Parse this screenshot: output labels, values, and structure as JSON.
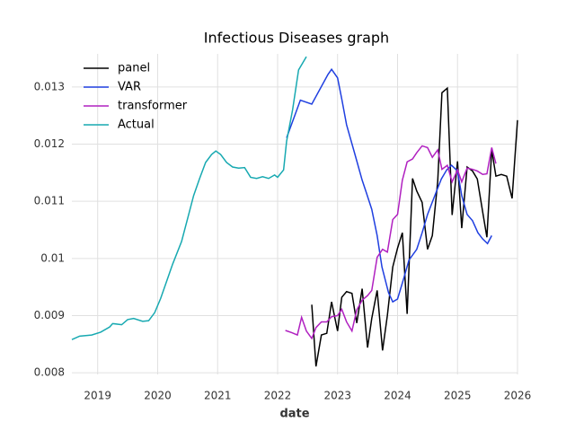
{
  "chart_data": {
    "type": "line",
    "title": "Infectious Diseases graph",
    "xlabel": "date",
    "xlim": [
      2018.57,
      2026
    ],
    "xticks": [
      2019,
      2020,
      2021,
      2022,
      2023,
      2024,
      2025,
      2026
    ],
    "ylim": [
      0.00797,
      0.01358
    ],
    "yticks": [
      0.008,
      0.009,
      0.01,
      0.011,
      0.012,
      0.013
    ],
    "grid": true,
    "legend": "upper left",
    "series": [
      {
        "name": "panel",
        "color": "#000000",
        "x": [
          2022.57,
          2022.64,
          2022.73,
          2022.82,
          2022.9,
          2023.0,
          2023.07,
          2023.15,
          2023.24,
          2023.32,
          2023.41,
          2023.5,
          2023.57,
          2023.66,
          2023.75,
          2023.83,
          2023.92,
          2024.0,
          2024.08,
          2024.16,
          2024.25,
          2024.32,
          2024.41,
          2024.5,
          2024.58,
          2024.67,
          2024.74,
          2024.83,
          2024.91,
          2025.0,
          2025.07,
          2025.16,
          2025.25,
          2025.33,
          2025.42,
          2025.49,
          2025.57,
          2025.64,
          2025.73,
          2025.82,
          2025.91,
          2026.0
        ],
        "values": [
          0.00919,
          0.00811,
          0.00866,
          0.00869,
          0.00924,
          0.00873,
          0.00932,
          0.00942,
          0.00939,
          0.00887,
          0.00947,
          0.00844,
          0.00895,
          0.00944,
          0.00839,
          0.009,
          0.00985,
          0.01018,
          0.01045,
          0.00903,
          0.0114,
          0.01118,
          0.01098,
          0.01016,
          0.0104,
          0.01135,
          0.0129,
          0.01298,
          0.01076,
          0.0117,
          0.01053,
          0.0116,
          0.01153,
          0.01139,
          0.01081,
          0.01037,
          0.0119,
          0.01144,
          0.01147,
          0.01144,
          0.01105,
          0.01242
        ]
      },
      {
        "name": "VAR",
        "color": "#1f3fe0",
        "x": [
          2022.15,
          2022.38,
          2022.57,
          2022.84,
          2022.9,
          2023.0,
          2023.07,
          2023.15,
          2023.29,
          2023.41,
          2023.48,
          2023.57,
          2023.66,
          2023.74,
          2023.85,
          2023.92,
          2024.0,
          2024.1,
          2024.19,
          2024.32,
          2024.41,
          2024.5,
          2024.64,
          2024.73,
          2024.82,
          2024.9,
          2025.0,
          2025.07,
          2025.16,
          2025.25,
          2025.34,
          2025.42,
          2025.5,
          2025.57
        ],
        "values": [
          0.01211,
          0.01277,
          0.0127,
          0.01322,
          0.01331,
          0.01316,
          0.01279,
          0.01234,
          0.01182,
          0.01137,
          0.01115,
          0.01086,
          0.0104,
          0.00985,
          0.0094,
          0.00924,
          0.00929,
          0.00964,
          0.00997,
          0.01016,
          0.01045,
          0.01077,
          0.01115,
          0.01139,
          0.01155,
          0.01163,
          0.01153,
          0.0111,
          0.01077,
          0.01066,
          0.01045,
          0.01034,
          0.01026,
          0.0104
        ]
      },
      {
        "name": "transformer",
        "color": "#b020c0",
        "x": [
          2022.13,
          2022.24,
          2022.33,
          2022.4,
          2022.48,
          2022.57,
          2022.64,
          2022.73,
          2022.82,
          2022.9,
          2023.0,
          2023.07,
          2023.15,
          2023.24,
          2023.32,
          2023.41,
          2023.5,
          2023.57,
          2023.66,
          2023.75,
          2023.83,
          2023.92,
          2024.0,
          2024.08,
          2024.16,
          2024.25,
          2024.32,
          2024.41,
          2024.5,
          2024.58,
          2024.67,
          2024.74,
          2024.83,
          2024.91,
          2025.0,
          2025.07,
          2025.16,
          2025.25,
          2025.33,
          2025.42,
          2025.49,
          2025.57,
          2025.64
        ],
        "values": [
          0.00874,
          0.0087,
          0.00866,
          0.00897,
          0.00873,
          0.0086,
          0.00879,
          0.00889,
          0.00889,
          0.00898,
          0.009,
          0.00911,
          0.00889,
          0.00873,
          0.0091,
          0.00927,
          0.00935,
          0.00944,
          0.01002,
          0.01016,
          0.01011,
          0.01068,
          0.01077,
          0.01137,
          0.01169,
          0.01174,
          0.01185,
          0.01197,
          0.01194,
          0.01177,
          0.0119,
          0.01156,
          0.01163,
          0.01134,
          0.01155,
          0.01134,
          0.01158,
          0.01156,
          0.01153,
          0.01147,
          0.01148,
          0.01194,
          0.01166
        ]
      },
      {
        "name": "Actual",
        "color": "#17a9b1",
        "x": [
          2018.57,
          2018.7,
          2018.9,
          2019.05,
          2019.2,
          2019.25,
          2019.4,
          2019.5,
          2019.6,
          2019.75,
          2019.85,
          2019.95,
          2020.05,
          2020.15,
          2020.25,
          2020.4,
          2020.5,
          2020.6,
          2020.7,
          2020.8,
          2020.9,
          2020.97,
          2021.05,
          2021.15,
          2021.25,
          2021.35,
          2021.45,
          2021.55,
          2021.65,
          2021.75,
          2021.85,
          2021.95,
          2022.0,
          2022.1,
          2022.15,
          2022.25,
          2022.35,
          2022.48
        ],
        "values": [
          0.00858,
          0.00864,
          0.00866,
          0.00871,
          0.0088,
          0.00886,
          0.00884,
          0.00893,
          0.00895,
          0.0089,
          0.00891,
          0.00905,
          0.0093,
          0.0096,
          0.0099,
          0.0103,
          0.0107,
          0.0111,
          0.0114,
          0.01168,
          0.01182,
          0.01188,
          0.01182,
          0.01168,
          0.0116,
          0.01158,
          0.01159,
          0.01142,
          0.0114,
          0.01143,
          0.0114,
          0.01146,
          0.01142,
          0.01155,
          0.01205,
          0.0126,
          0.0133,
          0.01353
        ]
      }
    ]
  }
}
